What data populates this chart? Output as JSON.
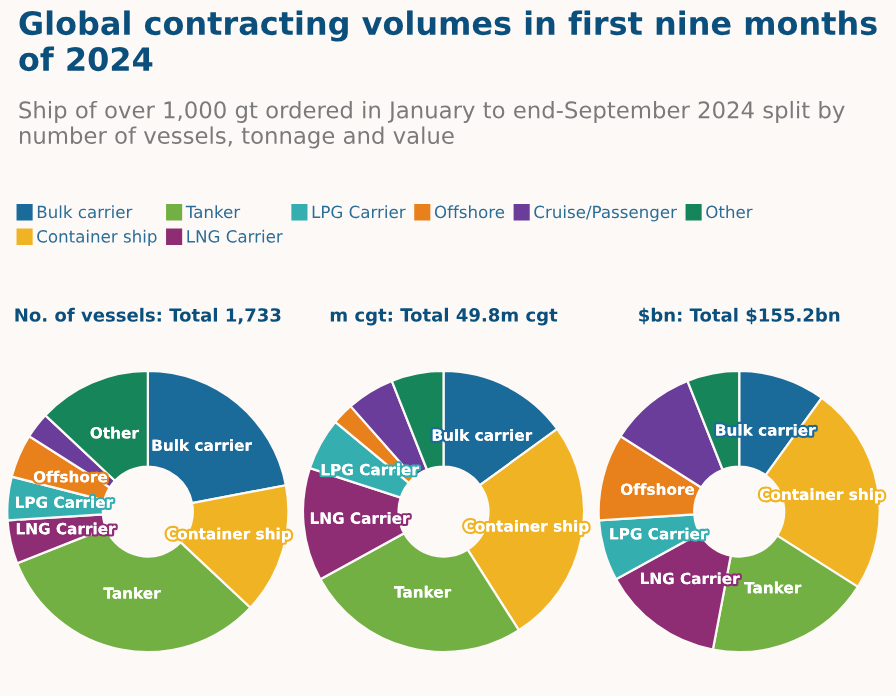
{
  "chart_data": [
    {
      "type": "donut",
      "title": "No. of vessels: Total 1,733",
      "legend": "top",
      "annotations": [
        "Global contracting volumes in first nine months of 2024",
        "Ship of over 1,000 gt ordered in January to end-September 2024 split by number of vessels, tonnage and value"
      ],
      "categories": [
        "Bulk carrier",
        "Container ship",
        "Tanker",
        "LNG Carrier",
        "LPG Carrier",
        "Offshore",
        "Cruise/Passenger",
        "Other"
      ],
      "value_labels": [
        "Bulk carrier",
        "Container ship",
        "Tanker",
        "LNG Carrier",
        "LPG Carrier",
        "Offshore",
        null,
        "Other"
      ],
      "values": [
        22,
        15,
        32,
        5,
        5,
        5,
        3,
        13
      ],
      "colors": [
        "#1a6b9a",
        "#f0b323",
        "#72b043",
        "#8e2c74",
        "#35aeb0",
        "#e8811b",
        "#6a3d9a",
        "#16855a"
      ]
    },
    {
      "type": "donut",
      "title": "m cgt: Total 49.8m cgt",
      "categories": [
        "Bulk carrier",
        "Container ship",
        "Tanker",
        "LNG Carrier",
        "LPG Carrier",
        null,
        null,
        null
      ],
      "values": [
        15,
        26,
        26,
        13,
        6,
        2.5,
        5.5,
        6
      ],
      "colors": [
        "#1a6b9a",
        "#f0b323",
        "#72b043",
        "#8e2c74",
        "#35aeb0",
        "#e8811b",
        "#6a3d9a",
        "#16855a"
      ]
    },
    {
      "type": "donut",
      "title": "$bn: Total $155.2bn",
      "categories": [
        "Bulk carrier",
        "Container ship",
        "Tanker",
        "LNG Carrier",
        "LPG Carrier",
        "Offshore",
        null,
        null
      ],
      "values": [
        10,
        24,
        19,
        14,
        7,
        10,
        10,
        6
      ],
      "colors": [
        "#1a6b9a",
        "#f0b323",
        "#72b043",
        "#8e2c74",
        "#35aeb0",
        "#e8811b",
        "#6a3d9a",
        "#16855a"
      ]
    }
  ]
}
